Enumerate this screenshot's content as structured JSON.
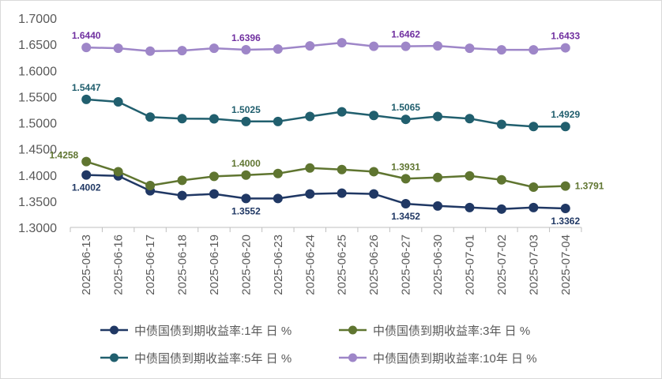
{
  "chart_data": {
    "type": "line",
    "title": "",
    "xlabel": "",
    "ylabel": "",
    "ylim": [
      1.3,
      1.7
    ],
    "ytick_step": 0.05,
    "yticks": [
      "1.3000",
      "1.3500",
      "1.4000",
      "1.4500",
      "1.5000",
      "1.5500",
      "1.6000",
      "1.6500",
      "1.7000"
    ],
    "grid": false,
    "legend_position": "bottom",
    "categories": [
      "2025-06-13",
      "2025-06-16",
      "2025-06-17",
      "2025-06-18",
      "2025-06-19",
      "2025-06-20",
      "2025-06-23",
      "2025-06-24",
      "2025-06-25",
      "2025-06-26",
      "2025-06-27",
      "2025-06-30",
      "2025-07-01",
      "2025-07-02",
      "2025-07-03",
      "2025-07-04"
    ],
    "series": [
      {
        "key": "y1",
        "name": "中债国债到期收益率:1年日%",
        "color": "#203864",
        "values": [
          1.4002,
          1.3985,
          1.37,
          1.361,
          1.364,
          1.3552,
          1.3552,
          1.364,
          1.3655,
          1.364,
          1.3452,
          1.341,
          1.338,
          1.335,
          1.338,
          1.3362
        ],
        "labels": [
          {
            "index": 0,
            "text": "1.4002",
            "position": "below"
          },
          {
            "index": 5,
            "text": "1.3552",
            "position": "below"
          },
          {
            "index": 10,
            "text": "1.3452",
            "position": "below"
          },
          {
            "index": 15,
            "text": "1.3362",
            "position": "below"
          }
        ]
      },
      {
        "key": "y3",
        "name": "中债国债到期收益率:3年日%",
        "color": "#5f7530",
        "values": [
          1.4258,
          1.4065,
          1.38,
          1.39,
          1.3975,
          1.4,
          1.403,
          1.4135,
          1.4105,
          1.4065,
          1.3931,
          1.3955,
          1.3985,
          1.391,
          1.377,
          1.3791
        ],
        "labels": [
          {
            "index": 0,
            "text": "1.4258",
            "position": "left"
          },
          {
            "index": 5,
            "text": "1.4000",
            "position": "above"
          },
          {
            "index": 10,
            "text": "1.3931",
            "position": "above"
          },
          {
            "index": 15,
            "text": "1.3791",
            "position": "right"
          }
        ]
      },
      {
        "key": "y5",
        "name": "中债国债到期收益率:5年日%",
        "color": "#215f6e",
        "values": [
          1.5447,
          1.54,
          1.511,
          1.508,
          1.5075,
          1.5025,
          1.5025,
          1.512,
          1.521,
          1.514,
          1.5065,
          1.512,
          1.508,
          1.497,
          1.4929,
          1.4929
        ],
        "labels": [
          {
            "index": 0,
            "text": "1.5447",
            "position": "above"
          },
          {
            "index": 5,
            "text": "1.5025",
            "position": "above"
          },
          {
            "index": 10,
            "text": "1.5065",
            "position": "above"
          },
          {
            "index": 15,
            "text": "1.4929",
            "position": "above"
          }
        ]
      },
      {
        "key": "y10",
        "name": "中债国债到期收益率:10年日%",
        "color": "#9e86c8",
        "values": [
          1.644,
          1.6425,
          1.637,
          1.638,
          1.6425,
          1.6396,
          1.641,
          1.647,
          1.653,
          1.6462,
          1.6462,
          1.647,
          1.6425,
          1.6395,
          1.6395,
          1.6433
        ],
        "labels": [
          {
            "index": 0,
            "text": "1.6440",
            "position": "above"
          },
          {
            "index": 5,
            "text": "1.6396",
            "position": "above"
          },
          {
            "index": 10,
            "text": "1.6462",
            "position": "above"
          },
          {
            "index": 15,
            "text": "1.6433",
            "position": "above"
          }
        ],
        "label_color": "#7030a0"
      }
    ],
    "legend": [
      {
        "series": "y1",
        "text": "中债国债到期收益率:1年 日 %"
      },
      {
        "series": "y3",
        "text": "中债国债到期收益率:3年 日 %"
      },
      {
        "series": "y5",
        "text": "中债国债到期收益率:5年 日 %"
      },
      {
        "series": "y10",
        "text": "中债国债到期收益率:10年 日 %"
      }
    ]
  }
}
